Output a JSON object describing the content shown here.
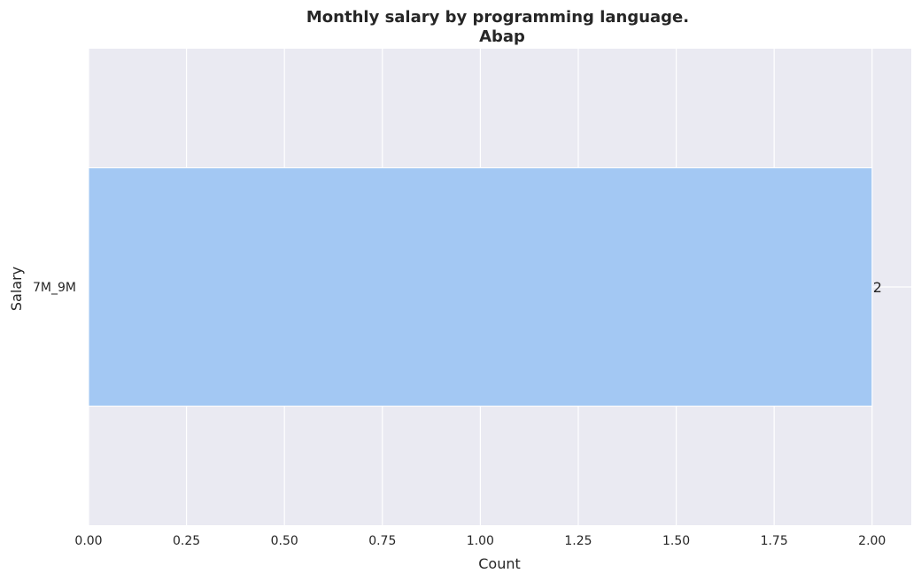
{
  "chart_data": {
    "type": "bar",
    "orientation": "horizontal",
    "title_line1": "Monthly salary by programming language.",
    "title_line2": "Abap",
    "xlabel": "Count",
    "ylabel": "Salary",
    "categories": [
      "7M_9M"
    ],
    "values": [
      2
    ],
    "data_labels": [
      "2"
    ],
    "xlim": [
      0,
      2.1
    ],
    "xticks": [
      0,
      0.25,
      0.5,
      0.75,
      1.0,
      1.25,
      1.5,
      1.75,
      2.0
    ],
    "xtick_labels": [
      "0.00",
      "0.25",
      "0.50",
      "0.75",
      "1.00",
      "1.25",
      "1.50",
      "1.75",
      "2.00"
    ],
    "grid": true,
    "colors": {
      "bar": "#a3c8f3",
      "background": "#eaeaf2",
      "grid": "#ffffff",
      "text": "#262626"
    }
  }
}
